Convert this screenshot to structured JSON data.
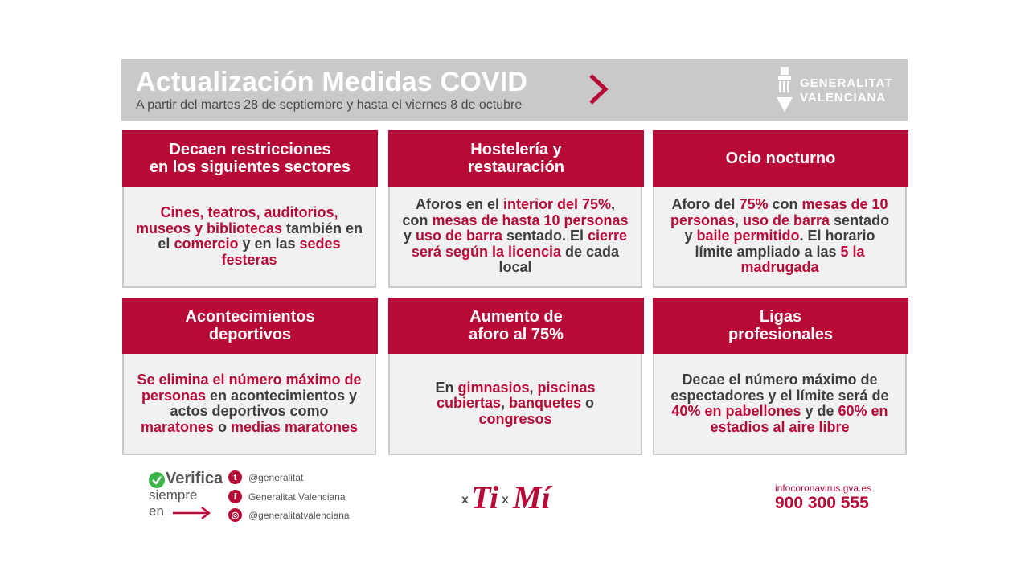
{
  "header": {
    "title": "Actualización Medidas COVID",
    "subtitle": "A partir del martes 28 de septiembre y hasta el viernes 8 de octubre",
    "logo_text": "GENERALITAT\nVALENCIANA"
  },
  "cards": [
    {
      "title": "Decaen restricciones\nen los siguientes sectores",
      "body": [
        [
          "Cines, teatros, auditorios, museos y bibliotecas",
          true
        ],
        [
          " también en el ",
          false
        ],
        [
          "comercio",
          true
        ],
        [
          " y en las ",
          false
        ],
        [
          "sedes festeras",
          true
        ]
      ]
    },
    {
      "title": "Hostelería y\nrestauración",
      "body": [
        [
          "Aforos en el ",
          false
        ],
        [
          "interior del 75%",
          true
        ],
        [
          ", con ",
          false
        ],
        [
          "mesas de hasta 10 personas",
          true
        ],
        [
          " y ",
          false
        ],
        [
          "uso de barra",
          true
        ],
        [
          " sentado. El ",
          false
        ],
        [
          "cierre será según la licencia",
          true
        ],
        [
          " de cada local",
          false
        ]
      ]
    },
    {
      "title": "Ocio nocturno",
      "body": [
        [
          "Aforo del ",
          false
        ],
        [
          "75%",
          true
        ],
        [
          " con ",
          false
        ],
        [
          "mesas de 10 personas",
          true
        ],
        [
          ", ",
          false
        ],
        [
          "uso de barra",
          true
        ],
        [
          " sentado y ",
          false
        ],
        [
          "baile permitido",
          true
        ],
        [
          ". El horario límite ampliado a las ",
          false
        ],
        [
          "5 la madrugada",
          true
        ]
      ]
    },
    {
      "title": "Acontecimientos\ndeportivos",
      "body": [
        [
          "Se elimina el número máximo de personas",
          true
        ],
        [
          " en acontecimientos y actos deportivos como ",
          false
        ],
        [
          "maratones",
          true
        ],
        [
          " o ",
          false
        ],
        [
          "medias maratones",
          true
        ]
      ]
    },
    {
      "title": "Aumento de\naforo al 75%",
      "body": [
        [
          "En ",
          false
        ],
        [
          "gimnasios",
          true
        ],
        [
          ", ",
          false
        ],
        [
          "piscinas cubiertas",
          true
        ],
        [
          ", ",
          false
        ],
        [
          "banquetes",
          true
        ],
        [
          " o ",
          false
        ],
        [
          "congresos",
          true
        ]
      ]
    },
    {
      "title": "Ligas\nprofesionales",
      "body": [
        [
          "Decae el número máximo de espectadores y el límite será de ",
          false
        ],
        [
          "40% en pabellones",
          true
        ],
        [
          " y de ",
          false
        ],
        [
          "60% en estadios al aire libre",
          true
        ]
      ]
    }
  ],
  "footer": {
    "verifica": "Verifica",
    "siempre": "siempre\nen",
    "twitter": "@generalitat",
    "facebook": "Generalitat Valenciana",
    "instagram": "@generalitatvalenciana",
    "campaign": "xTi xMí",
    "info_url": "infocoronavirus.gva.es",
    "phone": "900 300 555"
  },
  "colors": {
    "accent": "#b70a37",
    "header_bg": "#c9c9c9",
    "card_bg": "#f1f1f1",
    "text": "#3d3d3d"
  }
}
